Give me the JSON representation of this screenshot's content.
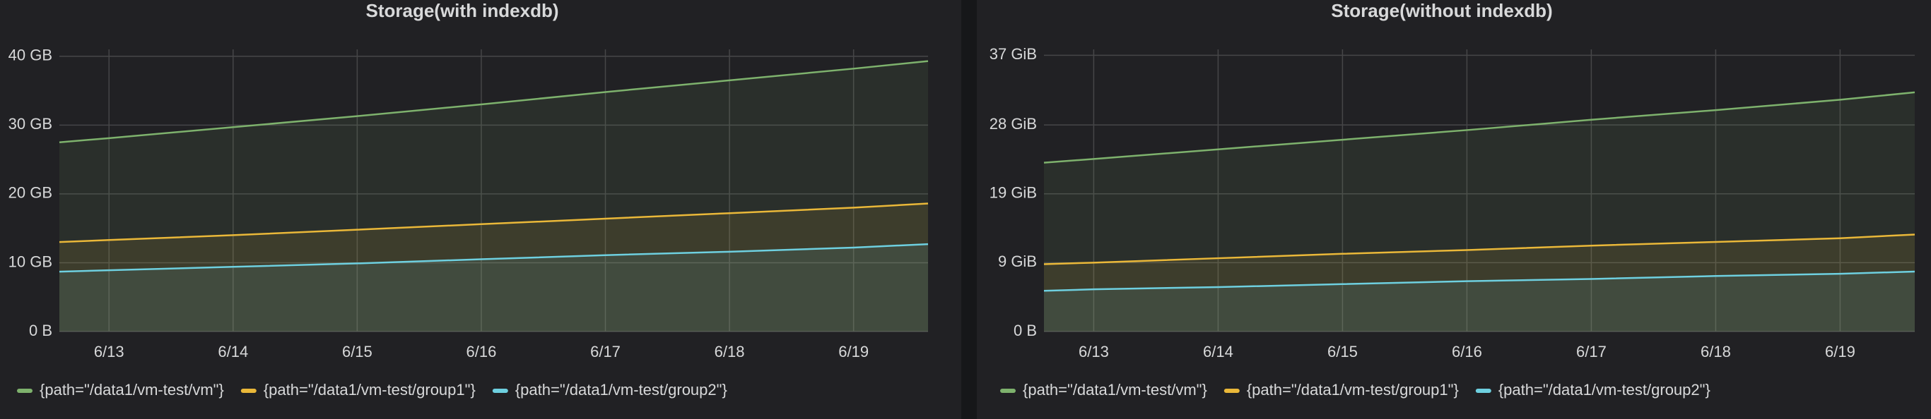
{
  "chart_data": [
    {
      "type": "line",
      "title": "Storage(with indexdb)",
      "x": [
        12.6,
        13,
        14,
        15,
        16,
        17,
        18,
        19,
        19.6
      ],
      "xlim": [
        12.6,
        19.6
      ],
      "xticks": [
        {
          "value": 13,
          "label": "6/13"
        },
        {
          "value": 14,
          "label": "6/14"
        },
        {
          "value": 15,
          "label": "6/15"
        },
        {
          "value": 16,
          "label": "6/16"
        },
        {
          "value": 17,
          "label": "6/17"
        },
        {
          "value": 18,
          "label": "6/18"
        },
        {
          "value": 19,
          "label": "6/19"
        }
      ],
      "ylim": [
        0,
        41
      ],
      "yticks": [
        {
          "value": 0,
          "label": "0 B"
        },
        {
          "value": 10,
          "label": "10 GB"
        },
        {
          "value": 20,
          "label": "20 GB"
        },
        {
          "value": 30,
          "label": "30 GB"
        },
        {
          "value": 40,
          "label": "40 GB"
        }
      ],
      "grid": true,
      "series": [
        {
          "name": "{path=\"/data1/vm-test/vm\"}",
          "color": "#7eb26d",
          "values": [
            27.5,
            28.1,
            29.7,
            31.3,
            33.0,
            34.8,
            36.5,
            38.2,
            39.3
          ]
        },
        {
          "name": "{path=\"/data1/vm-test/group1\"}",
          "color": "#eab839",
          "values": [
            13.0,
            13.3,
            14.0,
            14.8,
            15.6,
            16.4,
            17.2,
            18.0,
            18.6
          ]
        },
        {
          "name": "{path=\"/data1/vm-test/group2\"}",
          "color": "#6ed0e0",
          "values": [
            8.7,
            8.9,
            9.4,
            9.9,
            10.5,
            11.1,
            11.6,
            12.2,
            12.7
          ]
        }
      ]
    },
    {
      "type": "line",
      "title": "Storage(without indexdb)",
      "x": [
        12.6,
        13,
        14,
        15,
        16,
        17,
        18,
        19,
        19.6
      ],
      "xlim": [
        12.6,
        19.6
      ],
      "xticks": [
        {
          "value": 13,
          "label": "6/13"
        },
        {
          "value": 14,
          "label": "6/14"
        },
        {
          "value": 15,
          "label": "6/15"
        },
        {
          "value": 16,
          "label": "6/16"
        },
        {
          "value": 17,
          "label": "6/17"
        },
        {
          "value": 18,
          "label": "6/18"
        },
        {
          "value": 19,
          "label": "6/19"
        }
      ],
      "ylim": [
        0,
        38.1
      ],
      "yticks": [
        {
          "value": 0,
          "label": "0 B"
        },
        {
          "value": 9.3,
          "label": "9 GiB"
        },
        {
          "value": 18.6,
          "label": "19 GiB"
        },
        {
          "value": 27.9,
          "label": "28 GiB"
        },
        {
          "value": 37.3,
          "label": "37 GiB"
        }
      ],
      "grid": true,
      "series": [
        {
          "name": "{path=\"/data1/vm-test/vm\"}",
          "color": "#7eb26d",
          "values": [
            22.8,
            23.3,
            24.6,
            25.9,
            27.2,
            28.6,
            29.9,
            31.3,
            32.3
          ]
        },
        {
          "name": "{path=\"/data1/vm-test/group1\"}",
          "color": "#eab839",
          "values": [
            9.1,
            9.3,
            9.9,
            10.5,
            11.0,
            11.6,
            12.1,
            12.6,
            13.1
          ]
        },
        {
          "name": "{path=\"/data1/vm-test/group2\"}",
          "color": "#6ed0e0",
          "values": [
            5.5,
            5.7,
            6.0,
            6.4,
            6.8,
            7.1,
            7.5,
            7.8,
            8.1
          ]
        }
      ]
    }
  ]
}
